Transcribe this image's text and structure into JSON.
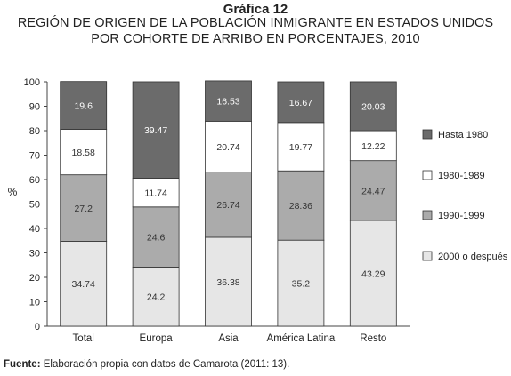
{
  "header": {
    "figure_number": "Gráfica 12",
    "title_line1": "REGIÓN DE ORIGEN DE LA POBLACIÓN INMIGRANTE EN ESTADOS UNIDOS",
    "title_line2": "POR COHORTE DE ARRIBO EN PORCENTAJES, 2010"
  },
  "footer": {
    "source_label": "Fuente:",
    "source_text": " Elaboración propia con datos de Camarota (2011: 13)."
  },
  "colors": {
    "Hasta 1980": "#6b6b6b",
    "1980-1989": "#ffffff",
    "1990-1999": "#ababab",
    "2000 o después": "#e6e6e6"
  },
  "chart_data": {
    "type": "bar",
    "stacked": true,
    "categories": [
      "Total",
      "Europa",
      "Asia",
      "América Latina",
      "Resto"
    ],
    "series": [
      {
        "name": "2000 o después",
        "values": [
          34.74,
          24.2,
          36.38,
          35.2,
          43.29
        ]
      },
      {
        "name": "1990-1999",
        "values": [
          27.2,
          24.6,
          26.74,
          28.36,
          24.47
        ]
      },
      {
        "name": "1980-1989",
        "values": [
          18.58,
          11.74,
          20.74,
          19.77,
          12.22
        ]
      },
      {
        "name": "Hasta 1980",
        "values": [
          19.6,
          39.47,
          16.53,
          16.67,
          20.03
        ]
      }
    ],
    "legend_order": [
      "Hasta 1980",
      "1980-1989",
      "1990-1999",
      "2000 o después"
    ],
    "ylabel": "%",
    "ylim": [
      0,
      100
    ],
    "yticks": [
      0,
      10,
      20,
      30,
      40,
      50,
      60,
      70,
      80,
      90,
      100
    ],
    "legend_position": "right",
    "grid": false
  }
}
